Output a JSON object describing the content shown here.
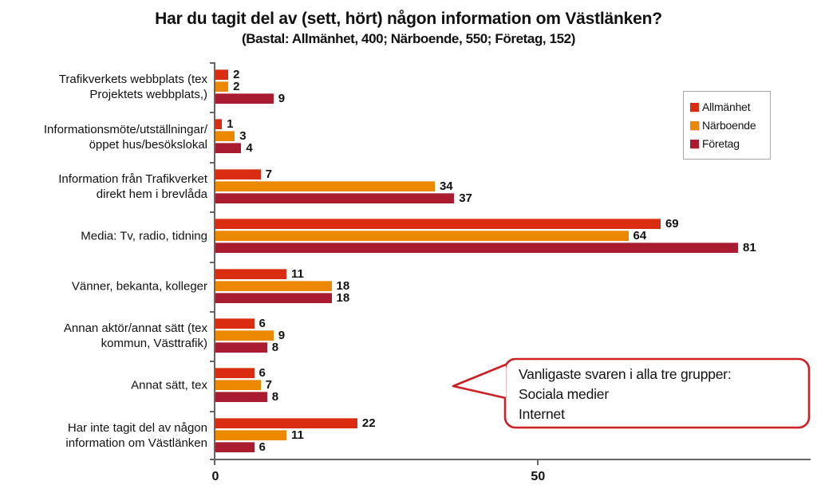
{
  "title": "Har du tagit del av (sett, hört) någon information om Västlänken?",
  "subtitle": "(Bastal: Allmänhet, 400; Närboende, 550; Företag, 152)",
  "chart_data": {
    "type": "bar",
    "orientation": "horizontal",
    "title": "Har du tagit del av (sett, hört) någon information om Västlänken?",
    "subtitle": "(Bastal: Allmänhet, 400; Närboende, 550; Företag, 152)",
    "categories": [
      "Trafikverkets webbplats (tex\nProjektets webbplats,)",
      "Informationsmöte/utställningar/\nöppet hus/besökslokal",
      "Information från Trafikverket\ndirekt hem i brevlåda",
      "Media: Tv, radio, tidning",
      "Vänner, bekanta, kolleger",
      "Annan aktör/annat sätt (tex\nkommun, Västtrafik)",
      "Annat sätt, tex",
      "Har inte tagit del av någon\ninformation om Västlänken"
    ],
    "series": [
      {
        "name": "Allmänhet",
        "color": "#D92C10",
        "values": [
          2,
          1,
          7,
          69,
          11,
          6,
          6,
          22
        ]
      },
      {
        "name": "Närboende",
        "color": "#EC8700",
        "values": [
          2,
          3,
          34,
          64,
          18,
          9,
          7,
          11
        ]
      },
      {
        "name": "Företag",
        "color": "#A91B2F",
        "values": [
          9,
          4,
          37,
          81,
          18,
          8,
          8,
          6
        ]
      }
    ],
    "xlim": [
      0,
      92.5
    ],
    "x_ticks": [
      0,
      50
    ],
    "grid": false,
    "legend_position": "top-right",
    "value_labels": true
  },
  "axis": {
    "tick_labels": [
      "0",
      "50"
    ],
    "color": "#666666"
  },
  "callout": {
    "lines": [
      "Vanligaste svaren i alla tre grupper:",
      "Sociala medier",
      "Internet"
    ],
    "border_color": "#CC2025"
  }
}
